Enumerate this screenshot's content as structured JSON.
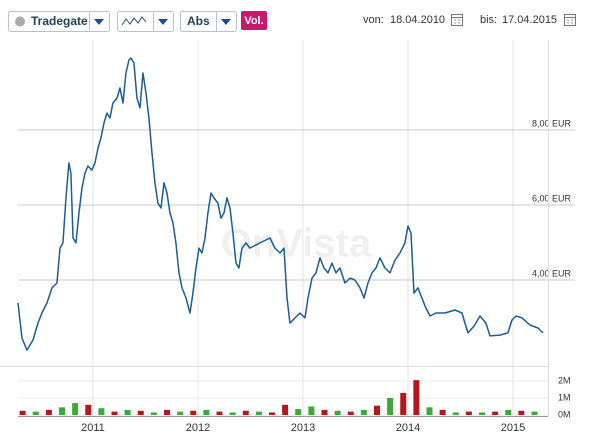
{
  "toolbar": {
    "exchange": "Tradegate",
    "mode": "Abs",
    "volume_button": "Vol.",
    "from_label": "von:",
    "from_date": "18.04.2010",
    "to_label": "bis:",
    "to_date": "17.04.2015"
  },
  "watermark": "OnVista",
  "chart_data": {
    "type": "line",
    "color": "#1d5c94",
    "grid": true,
    "xlim": [
      2010.286,
      2015.286
    ],
    "xticks": [
      2011,
      2012,
      2013,
      2014,
      2015
    ],
    "ylim": [
      1.8,
      10.4
    ],
    "yticks": [
      {
        "value": 4,
        "label": "4,00 EUR"
      },
      {
        "value": 6,
        "label": "6,00 EUR"
      },
      {
        "value": 8,
        "label": "8,00 EUR"
      }
    ],
    "x": [
      2010.286,
      2010.324,
      2010.371,
      2010.429,
      2010.476,
      2010.514,
      2010.562,
      2010.61,
      2010.657,
      2010.686,
      2010.714,
      2010.743,
      2010.771,
      2010.79,
      2010.81,
      2010.838,
      2010.867,
      2010.895,
      2010.924,
      2010.952,
      2010.99,
      2011.019,
      2011.048,
      2011.076,
      2011.105,
      2011.133,
      2011.162,
      2011.19,
      2011.229,
      2011.257,
      2011.286,
      2011.314,
      2011.343,
      2011.362,
      2011.39,
      2011.419,
      2011.448,
      2011.476,
      2011.505,
      2011.533,
      2011.562,
      2011.59,
      2011.619,
      2011.648,
      2011.676,
      2011.705,
      2011.733,
      2011.762,
      2011.79,
      2011.819,
      2011.848,
      2011.886,
      2011.924,
      2011.952,
      2011.981,
      2012.01,
      2012.038,
      2012.067,
      2012.095,
      2012.124,
      2012.152,
      2012.19,
      2012.219,
      2012.248,
      2012.276,
      2012.305,
      2012.333,
      2012.362,
      2012.39,
      2012.419,
      2012.457,
      2012.495,
      2012.59,
      2012.686,
      2012.733,
      2012.781,
      2012.819,
      2012.848,
      2012.876,
      2012.924,
      2012.971,
      2013.019,
      2013.048,
      2013.086,
      2013.124,
      2013.162,
      2013.2,
      2013.238,
      2013.276,
      2013.314,
      2013.352,
      2013.4,
      2013.448,
      2013.495,
      2013.543,
      2013.581,
      2013.619,
      2013.657,
      2013.695,
      2013.733,
      2013.781,
      2013.829,
      2013.876,
      2013.924,
      2013.971,
      2014.0,
      2014.029,
      2014.057,
      2014.095,
      2014.133,
      2014.171,
      2014.21,
      2014.267,
      2014.352,
      2014.448,
      2014.514,
      2014.571,
      2014.629,
      2014.686,
      2014.743,
      2014.781,
      2014.876,
      2014.952,
      2014.99,
      2015.029,
      2015.086,
      2015.162,
      2015.238,
      2015.286
    ],
    "values": [
      3.39,
      2.45,
      2.13,
      2.4,
      2.85,
      3.12,
      3.39,
      3.79,
      3.92,
      4.85,
      4.99,
      6.19,
      7.12,
      6.85,
      5.12,
      4.99,
      5.79,
      6.45,
      6.85,
      7.04,
      6.93,
      7.12,
      7.52,
      7.79,
      8.19,
      8.45,
      8.32,
      8.72,
      8.85,
      9.12,
      8.72,
      9.52,
      9.87,
      9.92,
      9.79,
      8.85,
      8.59,
      9.52,
      8.99,
      8.32,
      7.39,
      6.59,
      6.05,
      5.92,
      6.59,
      6.32,
      5.79,
      5.52,
      4.99,
      4.19,
      3.79,
      3.52,
      3.12,
      3.65,
      4.32,
      4.85,
      4.72,
      5.12,
      5.79,
      6.32,
      6.19,
      6.05,
      5.65,
      5.79,
      6.19,
      5.92,
      5.25,
      4.45,
      4.32,
      4.85,
      4.99,
      4.85,
      4.99,
      5.12,
      4.85,
      4.72,
      4.85,
      3.52,
      2.85,
      2.99,
      3.12,
      2.99,
      3.52,
      4.05,
      4.19,
      4.59,
      4.32,
      4.19,
      4.45,
      4.19,
      4.32,
      3.92,
      4.05,
      4.0,
      3.79,
      3.52,
      3.92,
      4.19,
      4.32,
      4.59,
      4.32,
      4.19,
      4.53,
      4.72,
      4.99,
      5.44,
      5.25,
      3.65,
      3.79,
      3.52,
      3.25,
      3.04,
      3.12,
      3.12,
      3.2,
      3.12,
      2.59,
      2.77,
      3.04,
      2.85,
      2.51,
      2.53,
      2.59,
      2.93,
      3.04,
      2.99,
      2.8,
      2.72,
      2.59
    ],
    "volume": {
      "type": "bar",
      "ylim": [
        0,
        2.3
      ],
      "yticks": [
        {
          "value": 0,
          "label": "0M"
        },
        {
          "value": 1,
          "label": "1M"
        },
        {
          "value": 2,
          "label": "2M"
        }
      ],
      "x": [
        2010.33,
        2010.455,
        2010.58,
        2010.705,
        2010.83,
        2010.955,
        2011.08,
        2011.205,
        2011.33,
        2011.455,
        2011.58,
        2011.705,
        2011.83,
        2011.955,
        2012.08,
        2012.205,
        2012.33,
        2012.455,
        2012.58,
        2012.705,
        2012.83,
        2012.955,
        2013.08,
        2013.205,
        2013.33,
        2013.455,
        2013.58,
        2013.705,
        2013.83,
        2013.955,
        2014.08,
        2014.205,
        2014.33,
        2014.455,
        2014.58,
        2014.705,
        2014.83,
        2014.955,
        2015.08,
        2015.205
      ],
      "values": [
        0.25,
        0.2,
        0.3,
        0.45,
        0.7,
        0.6,
        0.4,
        0.2,
        0.3,
        0.25,
        0.15,
        0.3,
        0.2,
        0.25,
        0.3,
        0.2,
        0.15,
        0.25,
        0.2,
        0.15,
        0.6,
        0.35,
        0.5,
        0.3,
        0.25,
        0.2,
        0.3,
        0.55,
        1.0,
        1.3,
        2.05,
        0.45,
        0.3,
        0.15,
        0.2,
        0.15,
        0.2,
        0.3,
        0.25,
        0.2
      ],
      "colors": [
        "#b3191c",
        "#3ea83a",
        "#b3191c",
        "#3ea83a",
        "#3ea83a",
        "#b3191c",
        "#3ea83a",
        "#b3191c",
        "#3ea83a",
        "#b3191c",
        "#3ea83a",
        "#b3191c",
        "#3ea83a",
        "#b3191c",
        "#3ea83a",
        "#b3191c",
        "#3ea83a",
        "#b3191c",
        "#3ea83a",
        "#b3191c",
        "#b3191c",
        "#3ea83a",
        "#3ea83a",
        "#b3191c",
        "#3ea83a",
        "#b3191c",
        "#3ea83a",
        "#b3191c",
        "#3ea83a",
        "#b3191c",
        "#b3191c",
        "#3ea83a",
        "#b3191c",
        "#3ea83a",
        "#b3191c",
        "#3ea83a",
        "#b3191c",
        "#3ea83a",
        "#b3191c",
        "#3ea83a"
      ]
    }
  }
}
